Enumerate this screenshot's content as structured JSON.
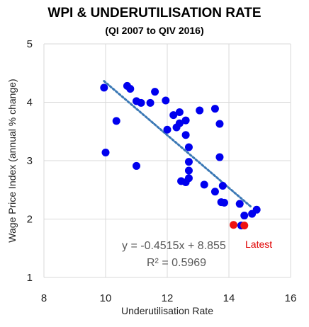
{
  "chart_data": {
    "type": "scatter",
    "title": "WPI & UNDERUTILISATION RATE",
    "subtitle": "(QI 2007 to QIV 2016)",
    "xlabel": "Underutilisation Rate",
    "ylabel": "Wage Price Index (annual % change)",
    "xlim": [
      8,
      16
    ],
    "ylim": [
      1,
      5
    ],
    "xticks": [
      "8",
      "10",
      "12",
      "14",
      "16"
    ],
    "yticks": [
      "1",
      "2",
      "3",
      "4",
      "5"
    ],
    "grid": true,
    "colors": {
      "points": "#0000ee",
      "latest": "#ee1111",
      "trend": "#3a78b5",
      "grid": "#d9d9d9"
    },
    "points": [
      {
        "x": 9.95,
        "y": 4.25
      },
      {
        "x": 10.7,
        "y": 4.28
      },
      {
        "x": 10.8,
        "y": 4.23
      },
      {
        "x": 11.0,
        "y": 4.02
      },
      {
        "x": 11.15,
        "y": 3.99
      },
      {
        "x": 11.45,
        "y": 3.99
      },
      {
        "x": 11.6,
        "y": 4.18
      },
      {
        "x": 11.95,
        "y": 4.03
      },
      {
        "x": 10.35,
        "y": 3.68
      },
      {
        "x": 12.0,
        "y": 3.53
      },
      {
        "x": 12.2,
        "y": 3.78
      },
      {
        "x": 12.4,
        "y": 3.83
      },
      {
        "x": 12.3,
        "y": 3.57
      },
      {
        "x": 12.4,
        "y": 3.64
      },
      {
        "x": 12.6,
        "y": 3.69
      },
      {
        "x": 12.6,
        "y": 3.44
      },
      {
        "x": 13.05,
        "y": 3.86
      },
      {
        "x": 13.55,
        "y": 3.89
      },
      {
        "x": 13.7,
        "y": 3.63
      },
      {
        "x": 12.7,
        "y": 3.23
      },
      {
        "x": 13.7,
        "y": 3.06
      },
      {
        "x": 10.0,
        "y": 3.14
      },
      {
        "x": 11.0,
        "y": 2.91
      },
      {
        "x": 12.7,
        "y": 2.98
      },
      {
        "x": 12.7,
        "y": 2.83
      },
      {
        "x": 12.7,
        "y": 2.7
      },
      {
        "x": 12.45,
        "y": 2.65
      },
      {
        "x": 12.6,
        "y": 2.63
      },
      {
        "x": 13.2,
        "y": 2.59
      },
      {
        "x": 13.8,
        "y": 2.57
      },
      {
        "x": 13.55,
        "y": 2.47
      },
      {
        "x": 13.75,
        "y": 2.29
      },
      {
        "x": 13.85,
        "y": 2.28
      },
      {
        "x": 14.35,
        "y": 2.26
      },
      {
        "x": 14.9,
        "y": 2.16
      },
      {
        "x": 14.75,
        "y": 2.09
      },
      {
        "x": 14.5,
        "y": 2.06
      },
      {
        "x": 14.4,
        "y": 1.89
      }
    ],
    "latest_points": [
      {
        "x": 14.15,
        "y": 1.9
      },
      {
        "x": 14.5,
        "y": 1.89
      }
    ],
    "trendline": {
      "slope": -0.4515,
      "intercept": 8.855,
      "x_range": [
        9.95,
        14.7
      ],
      "style": "dotted"
    },
    "equation_text": "y = -0.4515x + 8.855",
    "r2_text": "R² = 0.5969",
    "annotation": "Latest"
  }
}
